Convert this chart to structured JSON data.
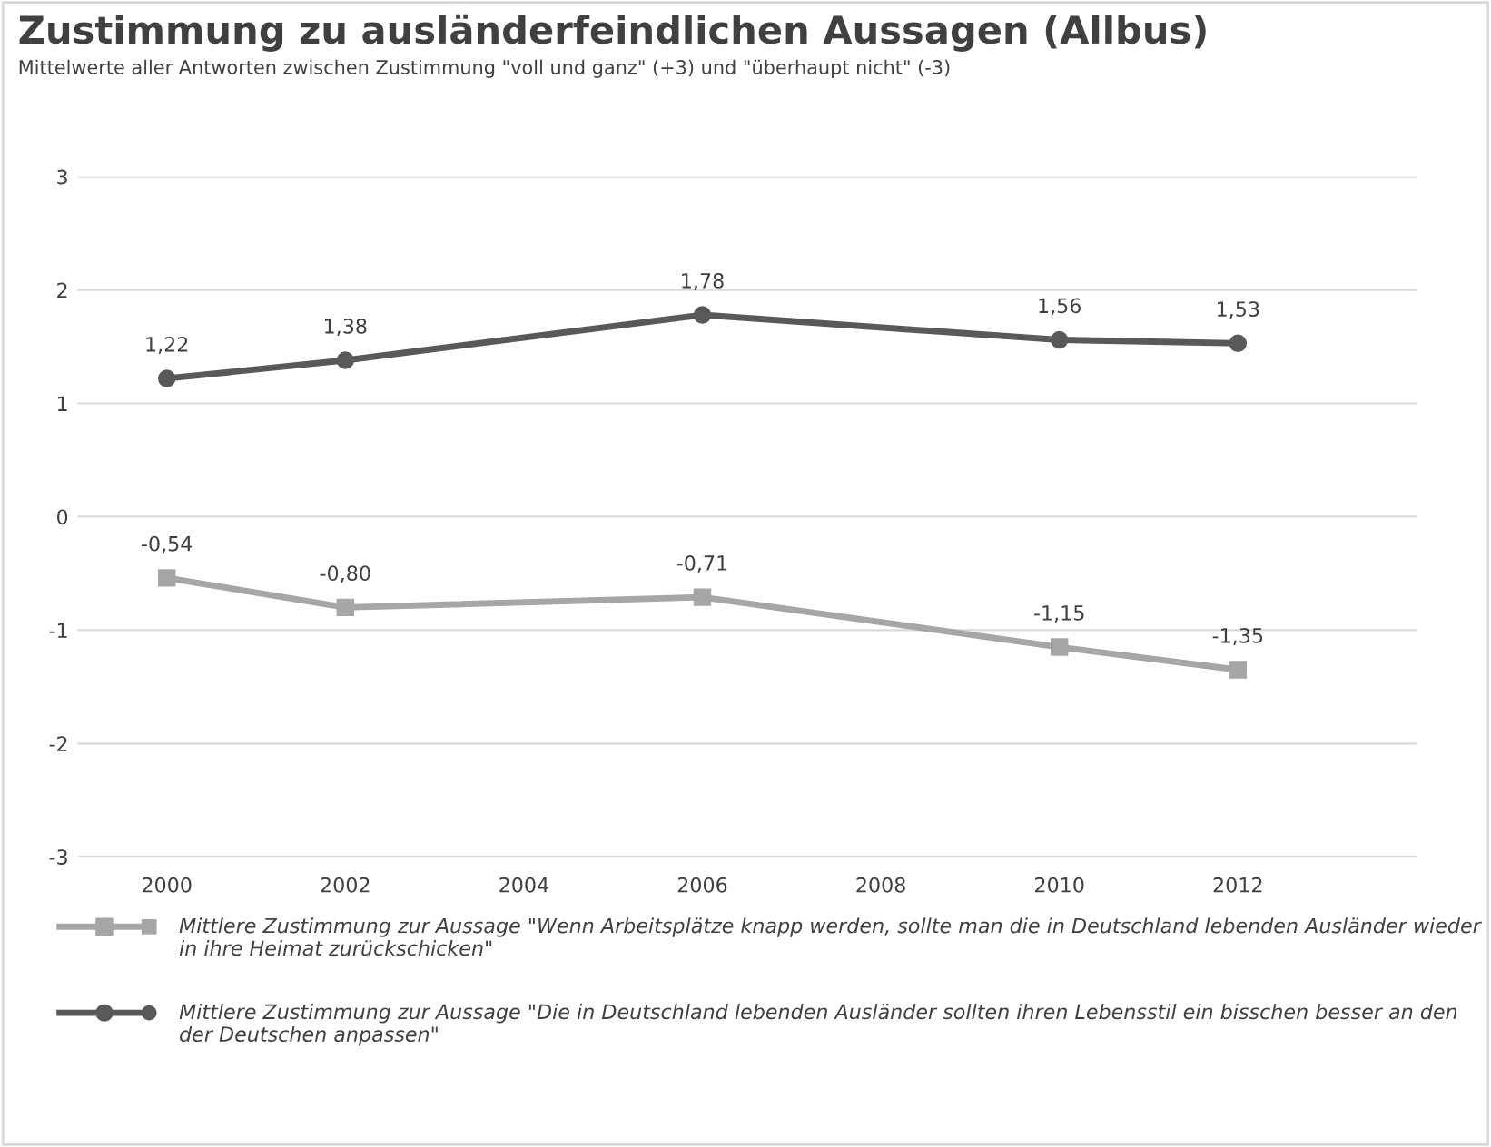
{
  "chart_data": {
    "type": "line",
    "title": "Zustimmung zu ausländerfeindlichen Aussagen (Allbus)",
    "subtitle": "Mittelwerte aller Antworten zwischen Zustimmung \"voll und ganz\" (+3) und \"überhaupt nicht\" (-3)",
    "x": [
      2000,
      2002,
      2006,
      2010,
      2012
    ],
    "series": [
      {
        "name": "Mittlere Zustimmung zur Aussage \"Wenn Arbeitsplätze knapp werden, sollte man die in Deutschland lebenden Ausländer wieder in ihre Heimat zurückschicken\"",
        "color": "#a6a6a6",
        "marker": "square",
        "values": [
          -0.54,
          -0.8,
          -0.71,
          -1.15,
          -1.35
        ],
        "value_labels": [
          "-0,54",
          "-0,80",
          "-0,71",
          "-1,15",
          "-1,35"
        ]
      },
      {
        "name": "Mittlere Zustimmung zur Aussage \"Die in Deutschland lebenden Ausländer sollten ihren Lebensstil ein bisschen besser an den der Deutschen anpassen\"",
        "color": "#595959",
        "marker": "circle",
        "values": [
          1.22,
          1.38,
          1.78,
          1.56,
          1.53
        ],
        "value_labels": [
          "1,22",
          "1,38",
          "1,78",
          "1,56",
          "1,53"
        ]
      }
    ],
    "xlim": [
      1999,
      2014
    ],
    "xticks": [
      2000,
      2002,
      2004,
      2006,
      2008,
      2010,
      2012
    ],
    "ylim": [
      -3,
      3
    ],
    "yticks": [
      -3,
      -2,
      -1,
      0,
      1,
      2,
      3
    ],
    "grid": "y",
    "legend": "bottom",
    "line_style": "solid"
  }
}
